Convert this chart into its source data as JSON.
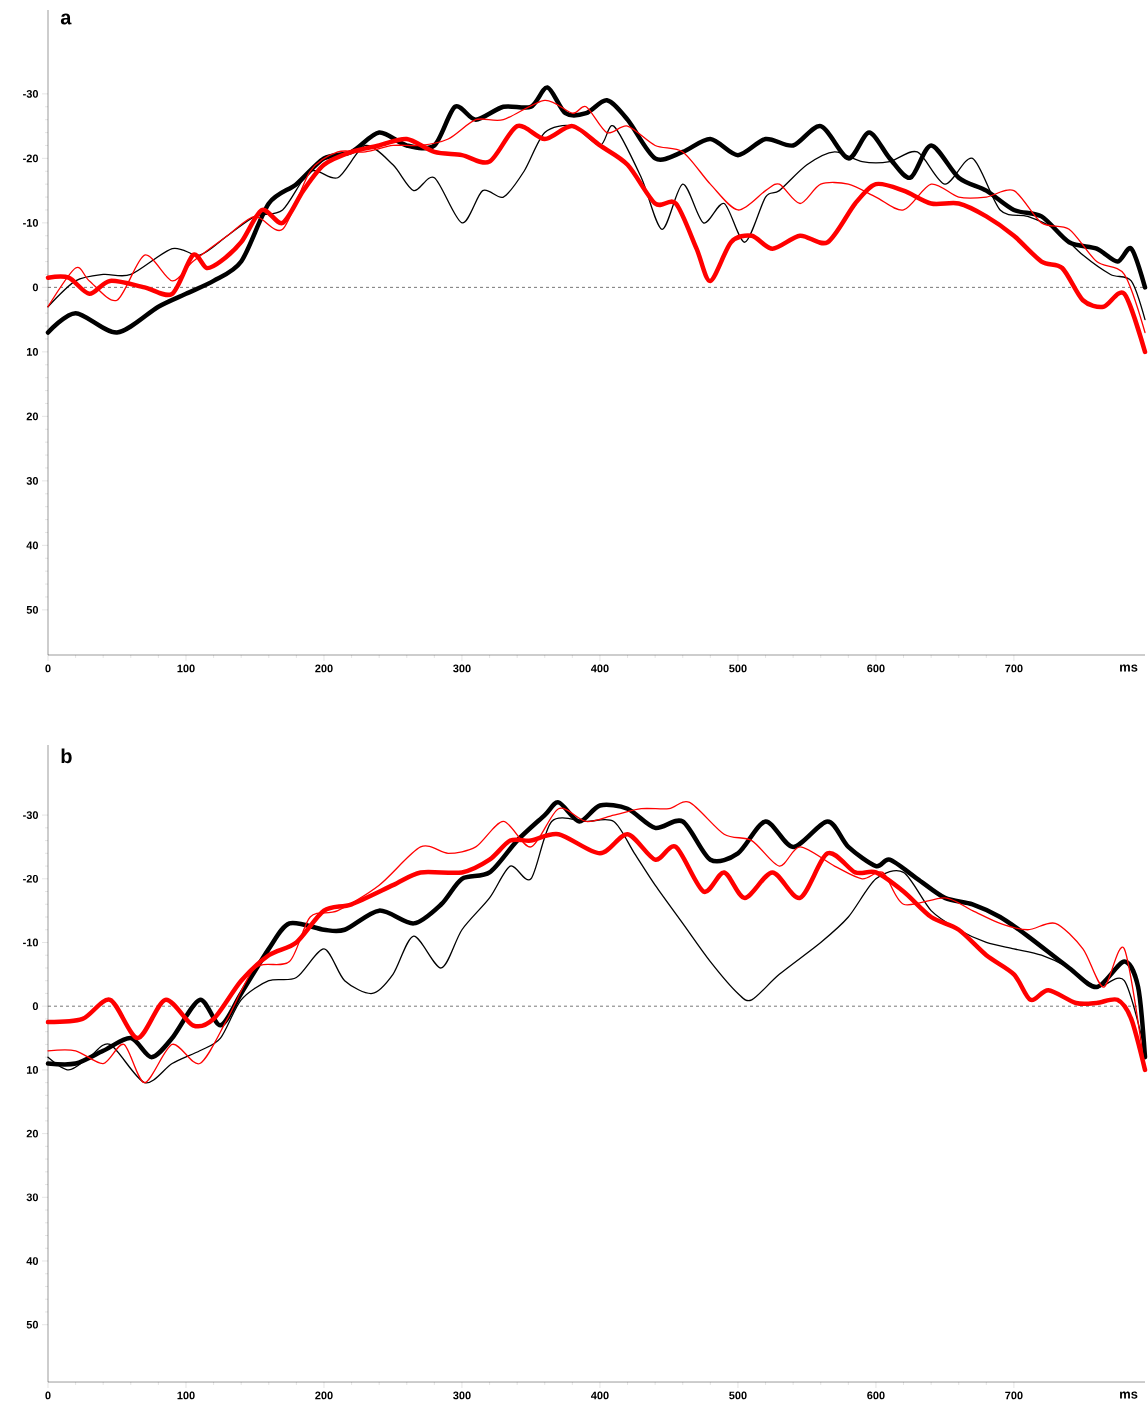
{
  "chart_data": [
    {
      "type": "line",
      "title": "a",
      "xlabel": "ms",
      "marker": "none",
      "line_style": "solid",
      "xlim": [
        0,
        795
      ],
      "ylim": [
        57,
        -43
      ],
      "xticks": [
        0,
        100,
        200,
        300,
        400,
        500,
        600,
        700
      ],
      "yticks": [
        -30,
        -20,
        -10,
        0,
        10,
        20,
        30,
        40,
        50
      ],
      "ref_lines": [
        {
          "axis": "y",
          "value": 0,
          "color": "#555555",
          "line_style": "dashed"
        }
      ],
      "series": [
        {
          "color": "#000000",
          "x": [
            0,
            20,
            50,
            80,
            100,
            120,
            140,
            160,
            180,
            200,
            220,
            240,
            260,
            280,
            295,
            310,
            330,
            350,
            362,
            375,
            390,
            405,
            420,
            440,
            460,
            480,
            500,
            520,
            540,
            560,
            580,
            595,
            610,
            625,
            640,
            660,
            680,
            700,
            720,
            740,
            760,
            775,
            785,
            795
          ],
          "values": [
            7,
            4,
            7,
            3,
            1,
            -1,
            -4,
            -13,
            -16,
            -20,
            -21,
            -24,
            -22,
            -22,
            -28,
            -26,
            -28,
            -28,
            -31,
            -27,
            -27,
            -29,
            -26,
            -20,
            -21,
            -23,
            -20.5,
            -23,
            -22,
            -25,
            -20,
            -24,
            -20,
            -17,
            -22,
            -17,
            -15,
            -12,
            -11,
            -7,
            -6,
            -4,
            -6,
            0
          ]
        },
        {
          "color": "#000000",
          "x": [
            0,
            20,
            40,
            60,
            90,
            110,
            130,
            150,
            170,
            190,
            210,
            230,
            250,
            265,
            280,
            300,
            315,
            330,
            345,
            360,
            380,
            400,
            410,
            430,
            445,
            460,
            475,
            490,
            505,
            520,
            530,
            550,
            570,
            590,
            610,
            630,
            650,
            670,
            690,
            710,
            730,
            750,
            770,
            785,
            795
          ],
          "values": [
            3,
            -1,
            -2,
            -2,
            -6,
            -5,
            -8,
            -11,
            -12,
            -18,
            -17,
            -22,
            -19,
            -15,
            -17,
            -10,
            -15,
            -14,
            -18,
            -24,
            -25,
            -22,
            -25,
            -17,
            -9,
            -16,
            -10,
            -13,
            -7,
            -14,
            -15,
            -19,
            -21,
            -19.5,
            -19.5,
            -21,
            -16,
            -20,
            -12,
            -11,
            -9,
            -5,
            -2,
            -1,
            5
          ]
        },
        {
          "color": "#ff0000",
          "x": [
            0,
            15,
            30,
            45,
            70,
            90,
            105,
            115,
            125,
            140,
            155,
            170,
            185,
            200,
            220,
            240,
            260,
            280,
            300,
            320,
            340,
            360,
            380,
            400,
            420,
            440,
            455,
            470,
            480,
            495,
            510,
            525,
            545,
            565,
            585,
            600,
            620,
            640,
            660,
            680,
            700,
            720,
            735,
            750,
            765,
            780,
            795
          ],
          "values": [
            -1.5,
            -1.5,
            1,
            -1,
            0,
            1,
            -5,
            -3,
            -4,
            -7,
            -12,
            -10,
            -15,
            -19,
            -21,
            -22,
            -23,
            -21,
            -20.5,
            -19.5,
            -25,
            -23,
            -25,
            -22,
            -19,
            -13,
            -13,
            -6,
            -1,
            -7,
            -8,
            -6,
            -8,
            -7,
            -13,
            -16,
            -15,
            -13,
            -13,
            -11,
            -8,
            -4,
            -3,
            2,
            3,
            1,
            10
          ]
        },
        {
          "color": "#ff0000",
          "x": [
            0,
            20,
            30,
            50,
            70,
            90,
            105,
            130,
            150,
            170,
            190,
            210,
            230,
            250,
            270,
            290,
            310,
            330,
            360,
            380,
            390,
            405,
            420,
            440,
            460,
            480,
            500,
            520,
            530,
            545,
            560,
            580,
            600,
            620,
            640,
            660,
            680,
            700,
            720,
            740,
            760,
            780,
            795
          ],
          "values": [
            3,
            -3,
            -1,
            2,
            -5,
            -1,
            -4,
            -8,
            -11,
            -9,
            -18,
            -21,
            -21,
            -22,
            -22,
            -23,
            -26,
            -26,
            -29,
            -27,
            -28,
            -24,
            -25,
            -22,
            -21,
            -16,
            -12,
            -15,
            -16,
            -13,
            -16,
            -16,
            -14,
            -12,
            -16,
            -14,
            -14,
            -15,
            -10,
            -9,
            -4,
            -2,
            7
          ]
        }
      ]
    },
    {
      "type": "line",
      "title": "b",
      "xlabel": "ms",
      "marker": "none",
      "line_style": "solid",
      "xlim": [
        0,
        795
      ],
      "ylim": [
        59,
        -41
      ],
      "xticks": [
        0,
        100,
        200,
        300,
        400,
        500,
        600,
        700
      ],
      "yticks": [
        -30,
        -20,
        -10,
        0,
        10,
        20,
        30,
        40,
        50
      ],
      "ref_lines": [
        {
          "axis": "y",
          "value": 0,
          "color": "#555555",
          "line_style": "dashed"
        }
      ],
      "series": [
        {
          "color": "#000000",
          "x": [
            0,
            20,
            40,
            60,
            75,
            90,
            110,
            125,
            140,
            160,
            175,
            200,
            215,
            240,
            265,
            285,
            300,
            320,
            340,
            360,
            370,
            385,
            400,
            420,
            440,
            460,
            480,
            500,
            520,
            540,
            565,
            580,
            600,
            610,
            630,
            650,
            670,
            690,
            710,
            740,
            760,
            780,
            790,
            795
          ],
          "values": [
            9,
            9,
            7,
            5,
            8,
            5,
            -1,
            3,
            -2,
            -9,
            -13,
            -12,
            -12,
            -15,
            -13,
            -16,
            -20,
            -21,
            -26,
            -30,
            -32,
            -29,
            -31.5,
            -31,
            -28,
            -29,
            -23,
            -24,
            -29,
            -25,
            -29,
            -25,
            -22,
            -23,
            -20,
            -17,
            -16,
            -14,
            -11,
            -6,
            -3,
            -7,
            -3,
            8
          ]
        },
        {
          "color": "#000000",
          "x": [
            0,
            15,
            30,
            45,
            70,
            90,
            110,
            125,
            140,
            160,
            180,
            200,
            215,
            235,
            250,
            265,
            285,
            300,
            320,
            335,
            350,
            365,
            390,
            410,
            425,
            440,
            460,
            480,
            500,
            510,
            530,
            560,
            580,
            600,
            620,
            640,
            660,
            680,
            700,
            720,
            740,
            760,
            780,
            795
          ],
          "values": [
            8,
            10,
            8,
            6,
            12,
            9,
            7,
            5,
            -1,
            -4,
            -4.5,
            -9,
            -4,
            -2,
            -5,
            -11,
            -6,
            -12,
            -17,
            -22,
            -20,
            -29,
            -29,
            -29,
            -24,
            -19,
            -13,
            -7,
            -2,
            -1,
            -5,
            -10,
            -14,
            -20,
            -21,
            -15,
            -12,
            -10,
            -9,
            -8,
            -6,
            -3,
            -4,
            7
          ]
        },
        {
          "color": "#ff0000",
          "x": [
            0,
            25,
            45,
            65,
            85,
            105,
            120,
            140,
            160,
            180,
            200,
            220,
            250,
            270,
            300,
            320,
            335,
            350,
            370,
            400,
            420,
            440,
            455,
            475,
            490,
            505,
            525,
            545,
            565,
            585,
            600,
            620,
            640,
            660,
            680,
            700,
            712,
            725,
            745,
            760,
            775,
            785,
            795
          ],
          "values": [
            2.5,
            2,
            -1,
            5,
            -1,
            3,
            2,
            -4,
            -8,
            -10,
            -15,
            -16,
            -19,
            -21,
            -21,
            -23,
            -26,
            -26,
            -27,
            -24,
            -27,
            -23,
            -25,
            -18,
            -21,
            -17,
            -21,
            -17,
            -24,
            -21,
            -21,
            -18,
            -14,
            -12,
            -8,
            -5,
            -1,
            -2.5,
            -0.5,
            -0.5,
            -1,
            2,
            10
          ]
        },
        {
          "color": "#ff0000",
          "x": [
            0,
            20,
            40,
            55,
            70,
            90,
            110,
            130,
            150,
            175,
            190,
            210,
            240,
            270,
            290,
            310,
            330,
            350,
            370,
            390,
            410,
            430,
            450,
            465,
            490,
            510,
            530,
            545,
            570,
            590,
            605,
            620,
            650,
            670,
            690,
            710,
            730,
            750,
            765,
            780,
            795
          ],
          "values": [
            7,
            7,
            9,
            6,
            12,
            6,
            9,
            2,
            -6,
            -7,
            -14,
            -15,
            -19,
            -25,
            -24,
            -25,
            -29,
            -25,
            -31,
            -29,
            -30,
            -31,
            -31,
            -32,
            -27,
            -26,
            -22,
            -25,
            -22,
            -20,
            -21,
            -16,
            -17,
            -15,
            -13,
            -12,
            -13,
            -9,
            -3,
            -9,
            10
          ]
        }
      ]
    }
  ]
}
